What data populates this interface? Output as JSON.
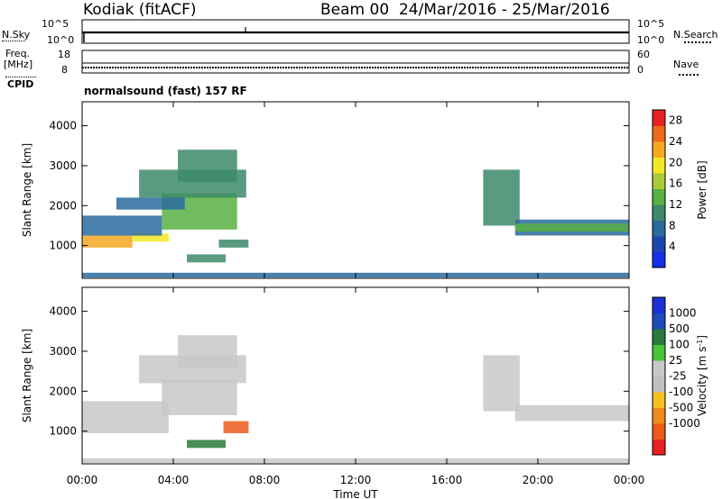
{
  "header": {
    "station": "Kodiak (fitACF)",
    "beam_date": "Beam 00  24/Mar/2016 - 25/Mar/2016"
  },
  "top_strip": {
    "nsky_label": "N.Sky",
    "nsearch_label": "N.Search",
    "left_ticks": [
      "10^5",
      "10^0"
    ],
    "right_ticks": [
      "10^5",
      "10^0"
    ],
    "freq_label": "Freq.",
    "freq_unit": "[MHz]",
    "freq_ticks": [
      "18",
      "8"
    ],
    "nave_label": "Nave",
    "nave_ticks": [
      "60",
      "0"
    ],
    "cpid_label": "CPID",
    "cpid_text": "normalsound (fast) 157 RF"
  },
  "colors": {
    "power": [
      "#1530e8",
      "#1b45b0",
      "#2a6b9e",
      "#3c8a6a",
      "#58b042",
      "#a8cc38",
      "#f2e826",
      "#f5a81e",
      "#ee6a1a",
      "#e82222"
    ],
    "velocity": [
      "#1a30d8",
      "#1d4bb8",
      "#2a7a3a",
      "#48c43a",
      "#c8c8c8",
      "#c0c0c0",
      "#f5c020",
      "#f08a18",
      "#ec5a1a",
      "#e82020"
    ]
  },
  "chart_data": [
    {
      "type": "heatmap",
      "title": "Power",
      "xlabel": "Time UT",
      "ylabel": "Slant Range [km]",
      "x_ticks": [
        "00:00",
        "04:00",
        "08:00",
        "12:00",
        "16:00",
        "20:00",
        "00:00"
      ],
      "y_ticks": [
        1000,
        2000,
        3000,
        4000
      ],
      "xlim_hours": [
        0,
        24
      ],
      "ylim_km": [
        180,
        4600
      ],
      "colorbar": {
        "label": "Power [dB]",
        "ticks": [
          "4",
          "8",
          "12",
          "16",
          "20",
          "24",
          "28"
        ],
        "range": [
          0,
          30
        ]
      },
      "regions": [
        {
          "t0": 0.0,
          "t1": 2.2,
          "r0": 950,
          "r1": 1250,
          "value": 21
        },
        {
          "t0": 2.2,
          "t1": 3.8,
          "r0": 1100,
          "r1": 1300,
          "value": 20
        },
        {
          "t0": 0.0,
          "t1": 3.5,
          "r0": 1250,
          "r1": 1750,
          "value": 8
        },
        {
          "t0": 3.5,
          "t1": 6.8,
          "r0": 1400,
          "r1": 2300,
          "value": 14
        },
        {
          "t0": 2.5,
          "t1": 7.2,
          "r0": 2200,
          "r1": 2900,
          "value": 10
        },
        {
          "t0": 1.5,
          "t1": 4.5,
          "r0": 1900,
          "r1": 2200,
          "value": 7
        },
        {
          "t0": 4.2,
          "t1": 6.8,
          "r0": 2600,
          "r1": 3400,
          "value": 9
        },
        {
          "t0": 4.6,
          "t1": 6.3,
          "r0": 580,
          "r1": 780,
          "value": 10
        },
        {
          "t0": 6.0,
          "t1": 7.3,
          "r0": 950,
          "r1": 1150,
          "value": 11
        },
        {
          "t0": 17.6,
          "t1": 19.2,
          "r0": 1500,
          "r1": 2900,
          "value": 9
        },
        {
          "t0": 19.0,
          "t1": 24.0,
          "r0": 1250,
          "r1": 1650,
          "value": 8
        },
        {
          "t0": 19.0,
          "t1": 24.0,
          "r0": 1350,
          "r1": 1550,
          "value": 13
        },
        {
          "t0": 0.0,
          "t1": 24.0,
          "r0": 200,
          "r1": 320,
          "value": 6
        }
      ]
    },
    {
      "type": "heatmap",
      "title": "Velocity",
      "xlabel": "Time UT",
      "ylabel": "Slant Range [km]",
      "x_ticks": [
        "00:00",
        "04:00",
        "08:00",
        "12:00",
        "16:00",
        "20:00",
        "00:00"
      ],
      "y_ticks": [
        1000,
        2000,
        3000,
        4000
      ],
      "xlim_hours": [
        0,
        24
      ],
      "ylim_km": [
        180,
        4600
      ],
      "colorbar": {
        "label": "Velocity [m s^-1]",
        "ticks": [
          "1000",
          "500",
          "100",
          "25",
          "-25",
          "-100",
          "-500",
          "-1000"
        ]
      },
      "regions": [
        {
          "t0": 0.0,
          "t1": 3.8,
          "r0": 950,
          "r1": 1750,
          "value": 0
        },
        {
          "t0": 3.5,
          "t1": 6.8,
          "r0": 1400,
          "r1": 2300,
          "value": 0
        },
        {
          "t0": 2.5,
          "t1": 7.2,
          "r0": 2200,
          "r1": 2900,
          "value": 0
        },
        {
          "t0": 4.2,
          "t1": 6.8,
          "r0": 2600,
          "r1": 3400,
          "value": 0
        },
        {
          "t0": 4.6,
          "t1": 6.3,
          "r0": 580,
          "r1": 780,
          "value": 150
        },
        {
          "t0": 6.2,
          "t1": 7.3,
          "r0": 950,
          "r1": 1250,
          "value": -300
        },
        {
          "t0": 17.6,
          "t1": 19.2,
          "r0": 1500,
          "r1": 2900,
          "value": 0
        },
        {
          "t0": 19.0,
          "t1": 24.0,
          "r0": 1250,
          "r1": 1650,
          "value": 0
        },
        {
          "t0": 0.0,
          "t1": 24.0,
          "r0": 200,
          "r1": 320,
          "value": 0
        }
      ]
    }
  ]
}
